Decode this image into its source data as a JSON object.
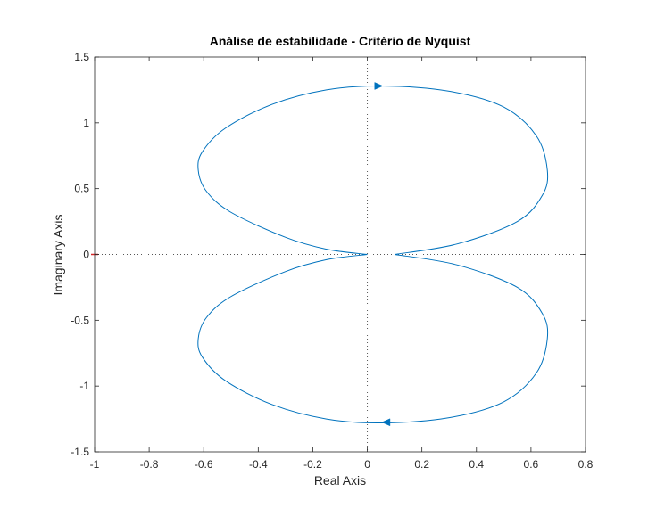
{
  "chart_data": {
    "type": "line",
    "title": "Análise de estabilidade - Critério de Nyquist",
    "xlabel": "Real Axis",
    "ylabel": "Imaginary Axis",
    "xlim": [
      -1,
      0.8
    ],
    "ylim": [
      -1.5,
      1.5
    ],
    "xticks": [
      -1,
      -0.8,
      -0.6,
      -0.4,
      -0.2,
      0,
      0.2,
      0.4,
      0.6,
      0.8
    ],
    "yticks": [
      -1.5,
      -1,
      -0.5,
      0,
      0.5,
      1,
      1.5
    ],
    "xtick_labels": [
      "-1",
      "-0.8",
      "-0.6",
      "-0.4",
      "-0.2",
      "0",
      "0.2",
      "0.4",
      "0.6",
      "0.8"
    ],
    "ytick_labels": [
      "-1.5",
      "-1",
      "-0.5",
      "0",
      "0.5",
      "1",
      "1.5"
    ],
    "grid": false,
    "critical_point": [
      -1,
      0
    ],
    "colors": {
      "curve": "#0072bd",
      "critical_point": "#d62728",
      "zero_lines": "#555555"
    },
    "series": [
      {
        "points": [
          [
            0.1,
            0.0
          ],
          [
            0.33,
            0.08
          ],
          [
            0.55,
            0.25
          ],
          [
            0.642,
            0.45
          ],
          [
            0.66,
            0.64
          ],
          [
            0.62,
            0.9
          ],
          [
            0.5,
            1.12
          ],
          [
            0.3,
            1.24
          ],
          [
            0.05,
            1.28
          ],
          [
            -0.15,
            1.25
          ],
          [
            -0.35,
            1.14
          ],
          [
            -0.52,
            0.96
          ],
          [
            -0.605,
            0.78
          ],
          [
            -0.62,
            0.64
          ],
          [
            -0.59,
            0.48
          ],
          [
            -0.5,
            0.32
          ],
          [
            -0.3,
            0.13
          ],
          [
            -0.15,
            0.04
          ],
          [
            0.0,
            0.0
          ]
        ]
      },
      {
        "points": [
          [
            0.0,
            0.0
          ],
          [
            -0.15,
            -0.04
          ],
          [
            -0.3,
            -0.13
          ],
          [
            -0.5,
            -0.32
          ],
          [
            -0.59,
            -0.48
          ],
          [
            -0.62,
            -0.64
          ],
          [
            -0.605,
            -0.78
          ],
          [
            -0.52,
            -0.96
          ],
          [
            -0.35,
            -1.14
          ],
          [
            -0.15,
            -1.25
          ],
          [
            0.05,
            -1.28
          ],
          [
            0.3,
            -1.24
          ],
          [
            0.5,
            -1.12
          ],
          [
            0.62,
            -0.9
          ],
          [
            0.66,
            -0.64
          ],
          [
            0.642,
            -0.45
          ],
          [
            0.55,
            -0.25
          ],
          [
            0.33,
            -0.08
          ],
          [
            0.1,
            0.0
          ]
        ]
      }
    ],
    "arrows": [
      {
        "x": 0.04,
        "y": 1.28,
        "direction": "right"
      },
      {
        "x": 0.07,
        "y": -1.275,
        "direction": "left"
      }
    ]
  }
}
